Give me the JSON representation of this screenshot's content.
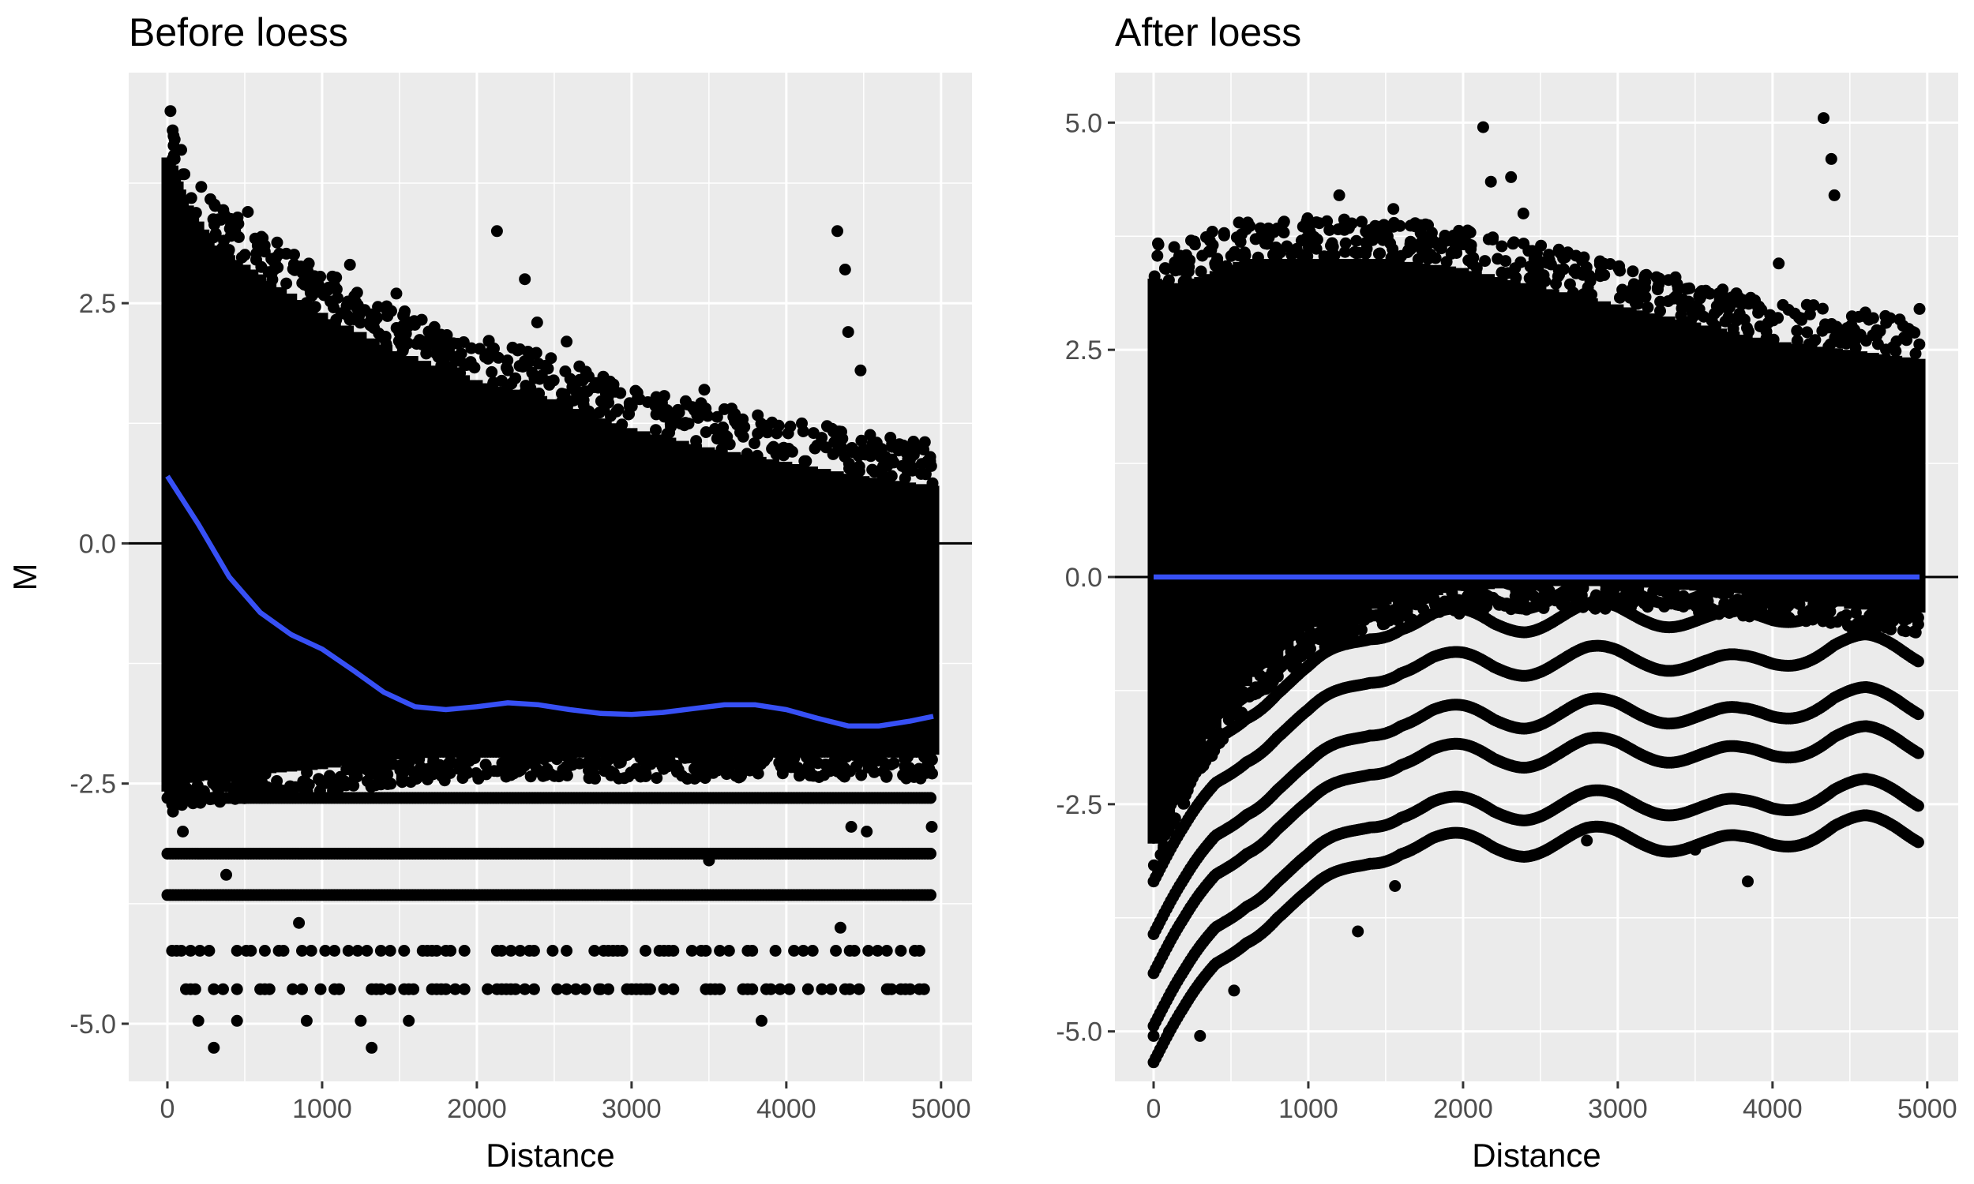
{
  "chart_data": [
    {
      "type": "scatter",
      "title": "Before loess",
      "xlabel": "Distance",
      "ylabel": "M",
      "xlim": [
        -250,
        5200
      ],
      "ylim": [
        -5.6,
        4.9
      ],
      "x_ticks": [
        0,
        1000,
        2000,
        3000,
        4000,
        5000
      ],
      "x_tick_labels": [
        "0",
        "1000",
        "2000",
        "3000",
        "4000",
        "5000"
      ],
      "y_ticks": [
        2.5,
        0,
        -2.5,
        -5
      ],
      "y_tick_labels": [
        "2.5",
        "0.0",
        "-2.5",
        "-5.0"
      ],
      "reference_line": {
        "y": 0,
        "color": "#000000"
      },
      "point_color": "#000000",
      "discrete_levels": [
        0.33,
        0.1,
        -0.17,
        -0.43,
        -0.68,
        -0.92,
        -1.17,
        -1.42,
        -1.67,
        -1.91,
        -2.17,
        -2.65,
        -3.23,
        -3.66,
        -4.24,
        -4.64
      ],
      "envelope": {
        "x": [
          0,
          100,
          300,
          600,
          1000,
          1500,
          2000,
          2500,
          3000,
          3500,
          4000,
          4500,
          4950
        ],
        "upper": [
          4.1,
          3.6,
          3.1,
          2.8,
          2.4,
          2.0,
          1.7,
          1.5,
          1.2,
          1.0,
          0.85,
          0.7,
          0.6
        ],
        "lower": [
          -2.6,
          -2.5,
          -2.45,
          -2.4,
          -2.35,
          -2.25,
          -2.2,
          -2.2,
          -2.2,
          -2.2,
          -2.2,
          -2.2,
          -2.2
        ]
      },
      "outliers": [
        {
          "x": 20,
          "y": 4.5
        },
        {
          "x": 520,
          "y": 3.45
        },
        {
          "x": 1180,
          "y": 2.9
        },
        {
          "x": 1480,
          "y": 2.6
        },
        {
          "x": 2130,
          "y": 3.25
        },
        {
          "x": 2310,
          "y": 2.75
        },
        {
          "x": 2390,
          "y": 2.3
        },
        {
          "x": 2580,
          "y": 2.1
        },
        {
          "x": 3470,
          "y": 1.6
        },
        {
          "x": 4330,
          "y": 3.25
        },
        {
          "x": 4380,
          "y": 2.85
        },
        {
          "x": 4400,
          "y": 2.2
        },
        {
          "x": 4480,
          "y": 1.8
        },
        {
          "x": 4930,
          "y": 0.9
        },
        {
          "x": 600,
          "y": 3.1
        },
        {
          "x": 1770,
          "y": 1.85
        },
        {
          "x": 300,
          "y": -5.25
        },
        {
          "x": 1320,
          "y": -5.25
        },
        {
          "x": 1560,
          "y": -4.97
        },
        {
          "x": 3840,
          "y": -4.97
        },
        {
          "x": 4350,
          "y": -4.0
        },
        {
          "x": 200,
          "y": -4.97
        },
        {
          "x": 450,
          "y": -4.97
        },
        {
          "x": 900,
          "y": -4.97
        },
        {
          "x": 1250,
          "y": -4.97
        },
        {
          "x": 100,
          "y": -3.0
        },
        {
          "x": 380,
          "y": -3.45
        },
        {
          "x": 1610,
          "y": -2.45
        },
        {
          "x": 4420,
          "y": -2.95
        },
        {
          "x": 4520,
          "y": -3.0
        },
        {
          "x": 4940,
          "y": -2.95
        },
        {
          "x": 3500,
          "y": -3.3
        },
        {
          "x": 2800,
          "y": -4.64
        },
        {
          "x": 3100,
          "y": -4.64
        },
        {
          "x": 4660,
          "y": -4.64
        },
        {
          "x": 850,
          "y": -3.95
        }
      ],
      "series": [
        {
          "name": "",
          "type": "line",
          "color": "#3750f5",
          "x": [
            0,
            200,
            400,
            600,
            800,
            1000,
            1200,
            1400,
            1600,
            1800,
            2000,
            2200,
            2400,
            2600,
            2800,
            3000,
            3200,
            3400,
            3600,
            3800,
            4000,
            4200,
            4400,
            4600,
            4800,
            4950
          ],
          "y": [
            0.7,
            0.2,
            -0.35,
            -0.72,
            -0.95,
            -1.1,
            -1.32,
            -1.55,
            -1.7,
            -1.73,
            -1.7,
            -1.66,
            -1.68,
            -1.73,
            -1.77,
            -1.78,
            -1.76,
            -1.72,
            -1.68,
            -1.68,
            -1.73,
            -1.82,
            -1.9,
            -1.9,
            -1.85,
            -1.8
          ]
        }
      ]
    },
    {
      "type": "scatter",
      "title": "After loess",
      "xlabel": "Distance",
      "ylabel": "",
      "xlim": [
        -250,
        5200
      ],
      "ylim": [
        -5.55,
        5.55
      ],
      "x_ticks": [
        0,
        1000,
        2000,
        3000,
        4000,
        5000
      ],
      "x_tick_labels": [
        "0",
        "1000",
        "2000",
        "3000",
        "4000",
        "5000"
      ],
      "y_ticks": [
        5,
        2.5,
        0,
        -2.5,
        -5
      ],
      "y_tick_labels": [
        "5.0",
        "2.5",
        "0.0",
        "-2.5",
        "-5.0"
      ],
      "reference_line": {
        "y": 0,
        "color": "#000000"
      },
      "point_color": "#000000",
      "discrete_levels_before": [
        0.33,
        0.1,
        -0.17,
        -0.43,
        -0.68,
        -0.92,
        -1.17,
        -1.42,
        -1.67,
        -1.91,
        -2.17,
        -2.65,
        -3.23,
        -3.66,
        -4.24,
        -4.64
      ],
      "envelope": {
        "x": [
          0,
          100,
          300,
          600,
          1000,
          1500,
          2000,
          2500,
          3000,
          3500,
          4000,
          4500,
          4950
        ],
        "upper": [
          3.3,
          3.2,
          3.3,
          3.5,
          3.5,
          3.5,
          3.4,
          3.2,
          3.0,
          2.8,
          2.6,
          2.5,
          2.4
        ],
        "lower": [
          -3.0,
          -2.6,
          -1.9,
          -1.2,
          -0.6,
          -0.3,
          -0.15,
          -0.1,
          -0.1,
          -0.15,
          -0.2,
          -0.35,
          -0.4
        ]
      },
      "outliers": [
        {
          "x": 2130,
          "y": 4.95
        },
        {
          "x": 4330,
          "y": 5.05
        },
        {
          "x": 4380,
          "y": 4.6
        },
        {
          "x": 4400,
          "y": 4.2
        },
        {
          "x": 1200,
          "y": 4.2
        },
        {
          "x": 1550,
          "y": 4.05
        },
        {
          "x": 2180,
          "y": 4.35
        },
        {
          "x": 2310,
          "y": 4.4
        },
        {
          "x": 2390,
          "y": 4.0
        },
        {
          "x": 4040,
          "y": 3.45
        },
        {
          "x": 4950,
          "y": 2.95
        },
        {
          "x": 0,
          "y": -5.05
        },
        {
          "x": 100,
          "y": -5.0
        },
        {
          "x": 300,
          "y": -5.05
        },
        {
          "x": 1320,
          "y": -3.9
        },
        {
          "x": 1560,
          "y": -3.4
        },
        {
          "x": 3840,
          "y": -3.35
        },
        {
          "x": 520,
          "y": -4.55
        },
        {
          "x": 2800,
          "y": -2.9
        },
        {
          "x": 3500,
          "y": -3.0
        }
      ],
      "series": [
        {
          "name": "",
          "type": "line",
          "color": "#3750f5",
          "x": [
            0,
            1000,
            2000,
            3000,
            4000,
            4950
          ],
          "y": [
            0,
            0,
            0,
            0,
            0,
            0
          ]
        }
      ]
    }
  ]
}
